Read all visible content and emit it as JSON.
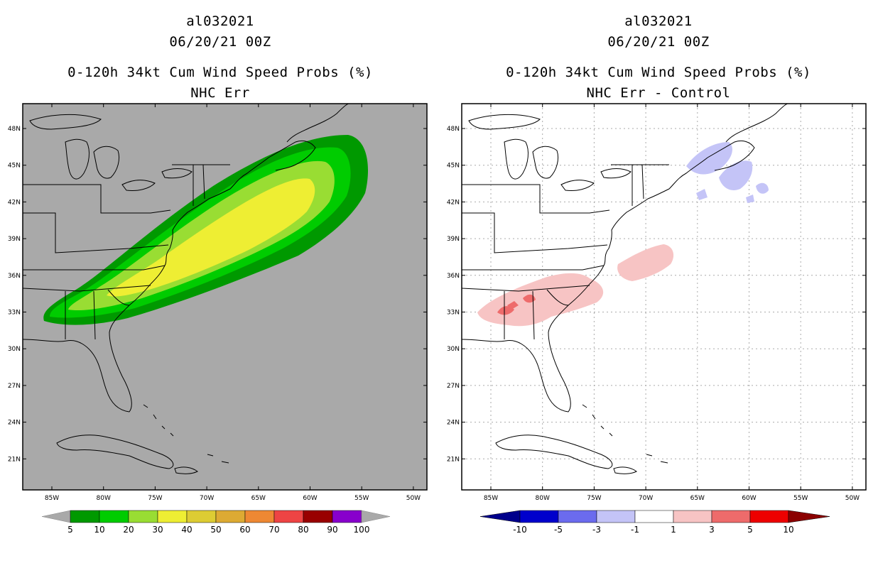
{
  "left_panel": {
    "storm_id": "al032021",
    "datetime": "06/20/21 00Z",
    "product": "0-120h 34kt Cum Wind Speed Probs (%)",
    "subtitle": "NHC Err"
  },
  "right_panel": {
    "storm_id": "al032021",
    "datetime": "06/20/21 00Z",
    "product": "0-120h 34kt Cum Wind Speed Probs (%)",
    "subtitle": "NHC Err - Control"
  },
  "axes": {
    "lat_labels": [
      "48N",
      "45N",
      "42N",
      "39N",
      "36N",
      "33N",
      "30N",
      "27N",
      "24N",
      "21N"
    ],
    "lon_labels": [
      "85W",
      "80W",
      "75W",
      "70W",
      "65W",
      "60W",
      "55W",
      "50W"
    ]
  },
  "left_colorbar": {
    "labels": [
      "5",
      "10",
      "20",
      "30",
      "40",
      "50",
      "60",
      "70",
      "80",
      "90",
      "100"
    ],
    "colors": [
      "#009900",
      "#00cc00",
      "#99dd33",
      "#eeee33",
      "#ddcc33",
      "#ddaa33",
      "#ee8833",
      "#ee4444",
      "#990000",
      "#8800cc"
    ],
    "end_color": "#a9a9a9"
  },
  "right_colorbar": {
    "labels": [
      "-10",
      "-5",
      "-3",
      "-1",
      "1",
      "3",
      "5",
      "10"
    ],
    "colors": [
      "#0000cc",
      "#6b6bee",
      "#c4c4f7",
      "#ffffff",
      "#f7c4c4",
      "#ee6b6b",
      "#ee0000"
    ],
    "low_end_color": "#00008b",
    "high_end_color": "#8b0000"
  },
  "colors": {
    "ocean_left": "#a9a9a9",
    "ocean_right": "#ffffff",
    "coast": "#000000"
  }
}
